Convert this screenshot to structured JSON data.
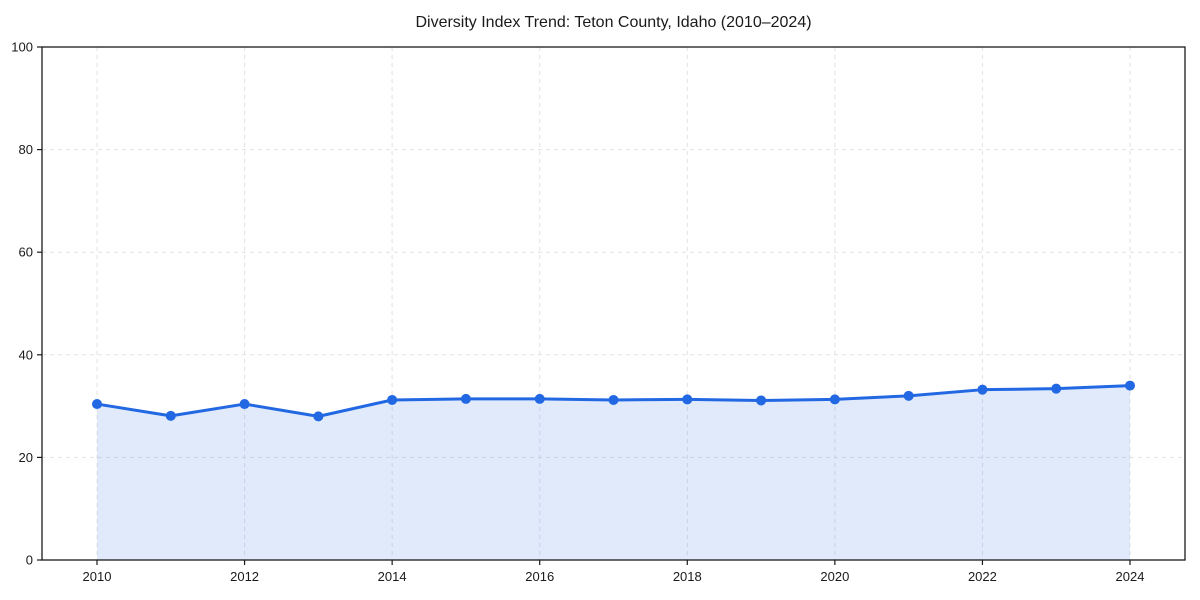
{
  "chart": {
    "title": "Diversity Index Trend: Teton County, Idaho (2010–2024)"
  },
  "chart_data": {
    "type": "area",
    "title": "Diversity Index Trend: Teton County, Idaho (2010–2024)",
    "xlabel": "",
    "ylabel": "",
    "x": [
      2010,
      2011,
      2012,
      2013,
      2014,
      2015,
      2016,
      2017,
      2018,
      2019,
      2020,
      2021,
      2022,
      2023,
      2024
    ],
    "series": [
      {
        "name": "Diversity Index",
        "values": [
          30.4,
          28.1,
          30.4,
          28.0,
          31.2,
          31.4,
          31.4,
          31.2,
          31.3,
          31.1,
          31.3,
          32.0,
          33.2,
          33.4,
          34.0
        ]
      }
    ],
    "ylim": [
      0,
      100
    ],
    "yticks": [
      0,
      20,
      40,
      60,
      80,
      100
    ],
    "xticks": [
      2010,
      2012,
      2014,
      2016,
      2018,
      2020,
      2022,
      2024
    ],
    "grid": true,
    "grid_style": "dashed",
    "legend": false,
    "colors": {
      "line": "#2268e3",
      "marker": "#2268e3",
      "fill": "#2268e3",
      "fill_opacity": 0.14,
      "grid": "#e2e2e2",
      "spine": "#1a1a1a",
      "tick_label": "#1a1a1a"
    }
  }
}
